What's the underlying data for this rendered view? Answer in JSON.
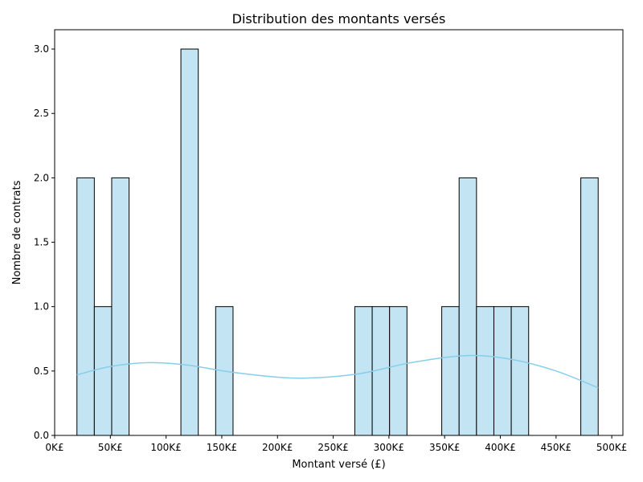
{
  "chart_data": {
    "type": "bar",
    "title": "Distribution des montants versés",
    "xlabel": "Montant versé (£)",
    "ylabel": "Nombre de contrats",
    "xlim": [
      0,
      510000
    ],
    "ylim": [
      0,
      3.15
    ],
    "x_ticks": [
      0,
      50000,
      100000,
      150000,
      200000,
      250000,
      300000,
      350000,
      400000,
      450000,
      500000
    ],
    "x_tick_labels": [
      "0K£",
      "50K£",
      "100K£",
      "150K£",
      "200K£",
      "250K£",
      "300K£",
      "350K£",
      "400K£",
      "450K£",
      "500K£"
    ],
    "y_ticks": [
      0,
      0.5,
      1,
      1.5,
      2,
      2.5,
      3
    ],
    "y_tick_labels": [
      "0.0",
      "0.5",
      "1.0",
      "1.5",
      "2.0",
      "2.5",
      "3.0"
    ],
    "bins": [
      {
        "x0": 20000,
        "x1": 35600,
        "count": 2
      },
      {
        "x0": 35600,
        "x1": 51200,
        "count": 1
      },
      {
        "x0": 51200,
        "x1": 66800,
        "count": 2
      },
      {
        "x0": 113300,
        "x1": 128900,
        "count": 3
      },
      {
        "x0": 144500,
        "x1": 160100,
        "count": 1
      },
      {
        "x0": 269400,
        "x1": 285000,
        "count": 1
      },
      {
        "x0": 285000,
        "x1": 300600,
        "count": 1
      },
      {
        "x0": 300600,
        "x1": 316200,
        "count": 1
      },
      {
        "x0": 347400,
        "x1": 363000,
        "count": 1
      },
      {
        "x0": 363000,
        "x1": 378600,
        "count": 2
      },
      {
        "x0": 378600,
        "x1": 394200,
        "count": 1
      },
      {
        "x0": 394200,
        "x1": 409800,
        "count": 1
      },
      {
        "x0": 409800,
        "x1": 425400,
        "count": 1
      },
      {
        "x0": 472200,
        "x1": 487800,
        "count": 2
      }
    ],
    "kde": {
      "x": [
        20000,
        50000,
        85000,
        120000,
        160000,
        215000,
        270000,
        320000,
        370000,
        410000,
        450000,
        487800
      ],
      "y": [
        0.47,
        0.535,
        0.565,
        0.545,
        0.49,
        0.445,
        0.475,
        0.565,
        0.62,
        0.59,
        0.5,
        0.37
      ]
    },
    "colors": {
      "bar_fill": "#c3e4f2",
      "bar_edge": "#000000",
      "kde_line": "#87ceeb"
    },
    "grid": false,
    "legend": "none"
  }
}
